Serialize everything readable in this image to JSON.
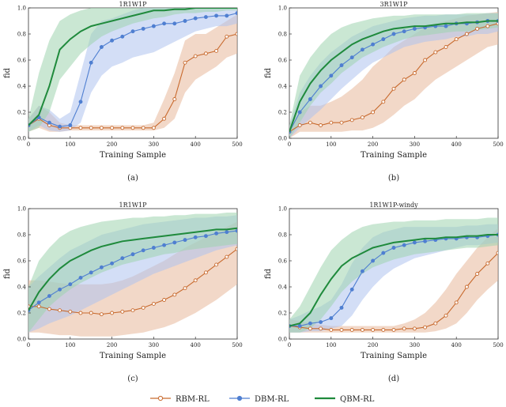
{
  "colors": {
    "rbm": "#c86a2e",
    "dbm": "#4f7fd1",
    "qbm": "#1f8a3c",
    "rbm_band": "#e8b89a",
    "dbm_band": "#aec3ef",
    "qbm_band": "#9fd4ae"
  },
  "legend": [
    {
      "key": "rbm",
      "label": "RBM-RL"
    },
    {
      "key": "dbm",
      "label": "DBM-RL"
    },
    {
      "key": "qbm",
      "label": "QBM-RL"
    }
  ],
  "chart_data": [
    {
      "type": "line",
      "panel": "a",
      "caption": "(a)",
      "title": "1R1W1P",
      "xlabel": "Training Sample",
      "ylabel": "fid",
      "xlim": [
        0,
        500
      ],
      "ylim": [
        0,
        1.0
      ],
      "xticks": [
        0,
        100,
        200,
        300,
        400,
        500
      ],
      "yticks": [
        0.0,
        0.2,
        0.4,
        0.6,
        0.8,
        1.0
      ],
      "xtick_labels": [
        "0",
        "100",
        "200",
        "300",
        "400",
        "500"
      ],
      "ytick_labels": [
        "0.0",
        "0.2",
        "0.4",
        "0.6",
        "0.8",
        "1.0"
      ],
      "x": [
        0,
        25,
        50,
        75,
        100,
        125,
        150,
        175,
        200,
        225,
        250,
        275,
        300,
        325,
        350,
        375,
        400,
        425,
        450,
        475,
        500
      ],
      "series": [
        {
          "key": "rbm",
          "name": "RBM-RL",
          "values": [
            0.1,
            0.15,
            0.1,
            0.08,
            0.08,
            0.08,
            0.08,
            0.08,
            0.08,
            0.08,
            0.08,
            0.08,
            0.08,
            0.15,
            0.3,
            0.58,
            0.63,
            0.65,
            0.67,
            0.78,
            0.8
          ],
          "lower": [
            0.05,
            0.08,
            0.05,
            0.05,
            0.06,
            0.06,
            0.06,
            0.06,
            0.06,
            0.06,
            0.06,
            0.06,
            0.06,
            0.08,
            0.15,
            0.35,
            0.45,
            0.5,
            0.55,
            0.62,
            0.65
          ],
          "upper": [
            0.15,
            0.25,
            0.2,
            0.12,
            0.1,
            0.1,
            0.1,
            0.1,
            0.1,
            0.1,
            0.1,
            0.1,
            0.12,
            0.3,
            0.5,
            0.75,
            0.8,
            0.8,
            0.85,
            0.9,
            0.95
          ]
        },
        {
          "key": "dbm",
          "name": "DBM-RL",
          "values": [
            0.1,
            0.16,
            0.12,
            0.09,
            0.1,
            0.28,
            0.58,
            0.7,
            0.75,
            0.78,
            0.82,
            0.84,
            0.86,
            0.88,
            0.88,
            0.9,
            0.92,
            0.93,
            0.94,
            0.94,
            0.96
          ],
          "lower": [
            0.05,
            0.1,
            0.06,
            0.05,
            0.06,
            0.12,
            0.35,
            0.48,
            0.55,
            0.58,
            0.62,
            0.64,
            0.66,
            0.7,
            0.74,
            0.78,
            0.82,
            0.84,
            0.86,
            0.86,
            0.88
          ],
          "upper": [
            0.15,
            0.25,
            0.22,
            0.15,
            0.2,
            0.5,
            0.8,
            0.9,
            0.92,
            0.95,
            0.98,
            1.0,
            1.0,
            1.0,
            1.0,
            1.0,
            1.0,
            1.0,
            1.0,
            1.0,
            1.0
          ]
        },
        {
          "key": "qbm",
          "name": "QBM-RL",
          "values": [
            0.1,
            0.18,
            0.4,
            0.68,
            0.76,
            0.82,
            0.86,
            0.88,
            0.9,
            0.92,
            0.94,
            0.96,
            0.98,
            0.98,
            0.99,
            0.99,
            1.0,
            1.0,
            1.0,
            1.0,
            1.0
          ],
          "lower": [
            0.05,
            0.08,
            0.2,
            0.45,
            0.55,
            0.65,
            0.72,
            0.78,
            0.82,
            0.85,
            0.88,
            0.9,
            0.92,
            0.93,
            0.95,
            0.96,
            0.96,
            0.97,
            0.97,
            0.98,
            0.98
          ],
          "upper": [
            0.15,
            0.5,
            0.75,
            0.9,
            0.95,
            0.98,
            1.0,
            1.0,
            1.0,
            1.0,
            1.0,
            1.0,
            1.0,
            1.0,
            1.0,
            1.0,
            1.0,
            1.0,
            1.0,
            1.0,
            1.0
          ]
        }
      ]
    },
    {
      "type": "line",
      "panel": "b",
      "caption": "(b)",
      "title": "3R1W1P",
      "xlabel": "Training Sample",
      "ylabel": "fid",
      "xlim": [
        0,
        500
      ],
      "ylim": [
        0,
        1.0
      ],
      "xticks": [
        0,
        100,
        200,
        300,
        400,
        500
      ],
      "yticks": [
        0.0,
        0.2,
        0.4,
        0.6,
        0.8,
        1.0
      ],
      "xtick_labels": [
        "0",
        "100",
        "200",
        "300",
        "400",
        "500"
      ],
      "ytick_labels": [
        "0.0",
        "0.2",
        "0.4",
        "0.6",
        "0.8",
        "1.0"
      ],
      "x": [
        0,
        25,
        50,
        75,
        100,
        125,
        150,
        175,
        200,
        225,
        250,
        275,
        300,
        325,
        350,
        375,
        400,
        425,
        450,
        475,
        500
      ],
      "series": [
        {
          "key": "rbm",
          "name": "RBM-RL",
          "values": [
            0.05,
            0.1,
            0.12,
            0.1,
            0.12,
            0.12,
            0.14,
            0.16,
            0.2,
            0.28,
            0.38,
            0.45,
            0.5,
            0.6,
            0.66,
            0.7,
            0.76,
            0.8,
            0.84,
            0.86,
            0.88
          ],
          "lower": [
            0.0,
            0.05,
            0.05,
            0.05,
            0.05,
            0.05,
            0.06,
            0.06,
            0.08,
            0.12,
            0.18,
            0.25,
            0.3,
            0.38,
            0.45,
            0.5,
            0.55,
            0.6,
            0.65,
            0.7,
            0.72
          ],
          "upper": [
            0.1,
            0.2,
            0.25,
            0.25,
            0.28,
            0.32,
            0.38,
            0.45,
            0.55,
            0.62,
            0.7,
            0.75,
            0.8,
            0.85,
            0.88,
            0.9,
            0.92,
            0.94,
            0.95,
            0.96,
            0.97
          ]
        },
        {
          "key": "dbm",
          "name": "DBM-RL",
          "values": [
            0.05,
            0.2,
            0.3,
            0.4,
            0.48,
            0.56,
            0.62,
            0.68,
            0.72,
            0.76,
            0.8,
            0.82,
            0.84,
            0.85,
            0.86,
            0.86,
            0.88,
            0.88,
            0.89,
            0.9,
            0.9
          ],
          "lower": [
            0.0,
            0.08,
            0.15,
            0.22,
            0.3,
            0.38,
            0.45,
            0.52,
            0.58,
            0.62,
            0.66,
            0.7,
            0.72,
            0.74,
            0.75,
            0.76,
            0.78,
            0.78,
            0.8,
            0.8,
            0.82
          ],
          "upper": [
            0.1,
            0.35,
            0.48,
            0.58,
            0.66,
            0.72,
            0.78,
            0.82,
            0.86,
            0.88,
            0.9,
            0.92,
            0.93,
            0.94,
            0.94,
            0.95,
            0.95,
            0.95,
            0.95,
            0.96,
            0.96
          ]
        },
        {
          "key": "qbm",
          "name": "QBM-RL",
          "values": [
            0.05,
            0.28,
            0.42,
            0.52,
            0.6,
            0.66,
            0.72,
            0.76,
            0.79,
            0.82,
            0.84,
            0.85,
            0.86,
            0.86,
            0.87,
            0.88,
            0.88,
            0.89,
            0.89,
            0.9,
            0.9
          ],
          "lower": [
            0.0,
            0.12,
            0.25,
            0.35,
            0.42,
            0.5,
            0.56,
            0.62,
            0.66,
            0.7,
            0.73,
            0.76,
            0.78,
            0.79,
            0.8,
            0.81,
            0.82,
            0.82,
            0.83,
            0.84,
            0.85
          ],
          "upper": [
            0.1,
            0.48,
            0.62,
            0.72,
            0.8,
            0.85,
            0.88,
            0.9,
            0.92,
            0.93,
            0.94,
            0.94,
            0.95,
            0.95,
            0.95,
            0.95,
            0.95,
            0.96,
            0.96,
            0.96,
            0.96
          ]
        }
      ]
    },
    {
      "type": "line",
      "panel": "c",
      "caption": "(c)",
      "title": "1R1W1P",
      "xlabel": "Training Sample",
      "ylabel": "fid",
      "xlim": [
        0,
        500
      ],
      "ylim": [
        0,
        1.0
      ],
      "xticks": [
        0,
        100,
        200,
        300,
        400,
        500
      ],
      "yticks": [
        0.0,
        0.2,
        0.4,
        0.6,
        0.8,
        1.0
      ],
      "xtick_labels": [
        "0",
        "100",
        "200",
        "300",
        "400",
        "500"
      ],
      "ytick_labels": [
        "0.0",
        "0.2",
        "0.4",
        "0.6",
        "0.8",
        "1.0"
      ],
      "x": [
        0,
        25,
        50,
        75,
        100,
        125,
        150,
        175,
        200,
        225,
        250,
        275,
        300,
        325,
        350,
        375,
        400,
        425,
        450,
        475,
        500
      ],
      "series": [
        {
          "key": "rbm",
          "name": "RBM-RL",
          "values": [
            0.25,
            0.25,
            0.23,
            0.22,
            0.21,
            0.2,
            0.2,
            0.19,
            0.2,
            0.21,
            0.22,
            0.24,
            0.27,
            0.3,
            0.34,
            0.39,
            0.45,
            0.51,
            0.57,
            0.63,
            0.69
          ],
          "lower": [
            0.05,
            0.05,
            0.04,
            0.03,
            0.03,
            0.02,
            0.02,
            0.02,
            0.02,
            0.03,
            0.04,
            0.05,
            0.07,
            0.09,
            0.12,
            0.16,
            0.2,
            0.25,
            0.3,
            0.36,
            0.42
          ],
          "upper": [
            0.45,
            0.45,
            0.44,
            0.43,
            0.42,
            0.42,
            0.42,
            0.42,
            0.43,
            0.45,
            0.48,
            0.52,
            0.56,
            0.6,
            0.65,
            0.7,
            0.74,
            0.78,
            0.82,
            0.86,
            0.9
          ]
        },
        {
          "key": "dbm",
          "name": "DBM-RL",
          "values": [
            0.22,
            0.28,
            0.33,
            0.38,
            0.42,
            0.47,
            0.51,
            0.55,
            0.58,
            0.62,
            0.65,
            0.68,
            0.7,
            0.72,
            0.74,
            0.76,
            0.78,
            0.79,
            0.81,
            0.82,
            0.83
          ],
          "lower": [
            0.05,
            0.08,
            0.12,
            0.15,
            0.18,
            0.22,
            0.26,
            0.3,
            0.34,
            0.38,
            0.42,
            0.46,
            0.5,
            0.53,
            0.56,
            0.59,
            0.62,
            0.65,
            0.68,
            0.7,
            0.72
          ],
          "upper": [
            0.4,
            0.48,
            0.55,
            0.62,
            0.68,
            0.72,
            0.76,
            0.8,
            0.82,
            0.84,
            0.86,
            0.88,
            0.89,
            0.9,
            0.91,
            0.92,
            0.93,
            0.93,
            0.94,
            0.94,
            0.95
          ]
        },
        {
          "key": "qbm",
          "name": "QBM-RL",
          "values": [
            0.22,
            0.36,
            0.46,
            0.54,
            0.6,
            0.64,
            0.68,
            0.71,
            0.73,
            0.75,
            0.76,
            0.77,
            0.78,
            0.79,
            0.8,
            0.81,
            0.82,
            0.83,
            0.84,
            0.84,
            0.85
          ],
          "lower": [
            0.05,
            0.15,
            0.25,
            0.32,
            0.38,
            0.43,
            0.47,
            0.51,
            0.54,
            0.57,
            0.59,
            0.61,
            0.63,
            0.65,
            0.66,
            0.68,
            0.69,
            0.7,
            0.71,
            0.72,
            0.73
          ],
          "upper": [
            0.4,
            0.6,
            0.7,
            0.78,
            0.83,
            0.86,
            0.88,
            0.9,
            0.91,
            0.92,
            0.93,
            0.93,
            0.94,
            0.94,
            0.95,
            0.95,
            0.96,
            0.96,
            0.96,
            0.97,
            0.97
          ]
        }
      ]
    },
    {
      "type": "line",
      "panel": "d",
      "caption": "(d)",
      "title": "1R1W1P-windy",
      "xlabel": "Training Sample",
      "ylabel": "fid",
      "xlim": [
        0,
        500
      ],
      "ylim": [
        0,
        1.0
      ],
      "xticks": [
        0,
        100,
        200,
        300,
        400,
        500
      ],
      "yticks": [
        0.0,
        0.2,
        0.4,
        0.6,
        0.8,
        1.0
      ],
      "xtick_labels": [
        "0",
        "100",
        "200",
        "300",
        "400",
        "500"
      ],
      "ytick_labels": [
        "0.0",
        "0.2",
        "0.4",
        "0.6",
        "0.8",
        "1.0"
      ],
      "x": [
        0,
        25,
        50,
        75,
        100,
        125,
        150,
        175,
        200,
        225,
        250,
        275,
        300,
        325,
        350,
        375,
        400,
        425,
        450,
        475,
        500
      ],
      "series": [
        {
          "key": "rbm",
          "name": "RBM-RL",
          "values": [
            0.1,
            0.09,
            0.08,
            0.08,
            0.07,
            0.07,
            0.07,
            0.07,
            0.07,
            0.07,
            0.07,
            0.08,
            0.08,
            0.09,
            0.12,
            0.18,
            0.28,
            0.4,
            0.5,
            0.58,
            0.66
          ],
          "lower": [
            0.05,
            0.05,
            0.05,
            0.05,
            0.05,
            0.05,
            0.05,
            0.05,
            0.05,
            0.05,
            0.05,
            0.05,
            0.05,
            0.05,
            0.06,
            0.08,
            0.12,
            0.2,
            0.3,
            0.38,
            0.45
          ],
          "upper": [
            0.15,
            0.14,
            0.12,
            0.11,
            0.1,
            0.1,
            0.1,
            0.1,
            0.1,
            0.1,
            0.1,
            0.12,
            0.15,
            0.2,
            0.28,
            0.38,
            0.5,
            0.6,
            0.7,
            0.78,
            0.85
          ]
        },
        {
          "key": "dbm",
          "name": "DBM-RL",
          "values": [
            0.1,
            0.1,
            0.12,
            0.13,
            0.16,
            0.24,
            0.38,
            0.52,
            0.6,
            0.66,
            0.7,
            0.72,
            0.74,
            0.75,
            0.76,
            0.77,
            0.77,
            0.78,
            0.78,
            0.79,
            0.8
          ],
          "lower": [
            0.05,
            0.05,
            0.06,
            0.06,
            0.08,
            0.1,
            0.18,
            0.3,
            0.4,
            0.48,
            0.54,
            0.58,
            0.62,
            0.64,
            0.66,
            0.68,
            0.7,
            0.72,
            0.72,
            0.73,
            0.74
          ],
          "upper": [
            0.15,
            0.18,
            0.22,
            0.25,
            0.3,
            0.42,
            0.58,
            0.7,
            0.78,
            0.82,
            0.84,
            0.86,
            0.86,
            0.86,
            0.86,
            0.86,
            0.86,
            0.87,
            0.87,
            0.88,
            0.88
          ]
        },
        {
          "key": "qbm",
          "name": "QBM-RL",
          "values": [
            0.1,
            0.12,
            0.2,
            0.34,
            0.46,
            0.56,
            0.62,
            0.66,
            0.7,
            0.72,
            0.74,
            0.75,
            0.76,
            0.77,
            0.77,
            0.78,
            0.78,
            0.79,
            0.79,
            0.8,
            0.8
          ],
          "lower": [
            0.05,
            0.05,
            0.08,
            0.15,
            0.25,
            0.36,
            0.44,
            0.5,
            0.55,
            0.58,
            0.61,
            0.63,
            0.65,
            0.66,
            0.67,
            0.68,
            0.69,
            0.7,
            0.7,
            0.71,
            0.72
          ],
          "upper": [
            0.15,
            0.25,
            0.4,
            0.55,
            0.68,
            0.76,
            0.82,
            0.86,
            0.88,
            0.89,
            0.9,
            0.9,
            0.91,
            0.91,
            0.91,
            0.92,
            0.92,
            0.92,
            0.92,
            0.93,
            0.93
          ]
        }
      ]
    }
  ]
}
